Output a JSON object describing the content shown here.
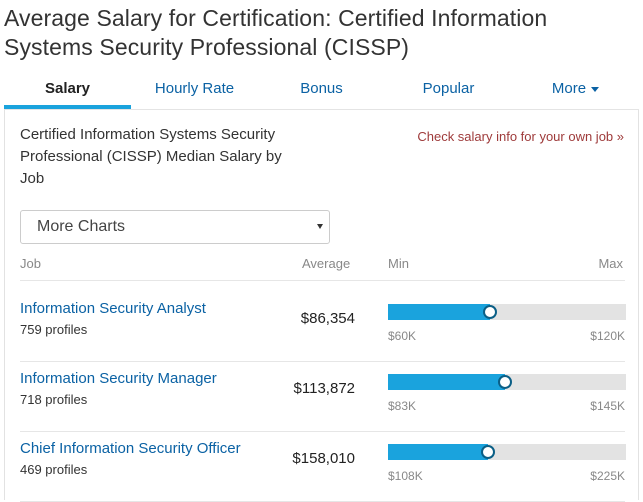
{
  "page": {
    "title": "Average Salary for Certification: Certified Information Systems Security Professional (CISSP)"
  },
  "tabs": [
    {
      "label": "Salary",
      "active": true
    },
    {
      "label": "Hourly Rate",
      "active": false
    },
    {
      "label": "Bonus",
      "active": false
    },
    {
      "label": "Popular",
      "active": false
    },
    {
      "label": "More",
      "active": false
    }
  ],
  "chart": {
    "title": "Certified Information Systems Security Professional (CISSP) Median Salary by Job",
    "own_job_link": "Check salary info for your own job »",
    "select_value": "More Charts"
  },
  "table": {
    "headers": {
      "job": "Job",
      "average": "Average",
      "min": "Min",
      "max": "Max"
    },
    "rows": [
      {
        "job": "Information Security Analyst",
        "profiles": "759 profiles",
        "average": "$86,354",
        "min": "$60K",
        "max": "$120K",
        "fill_percent": 43,
        "marker_percent": 43
      },
      {
        "job": "Information Security Manager",
        "profiles": "718 profiles",
        "average": "$113,872",
        "min": "$83K",
        "max": "$145K",
        "fill_percent": 49,
        "marker_percent": 49
      },
      {
        "job": "Chief Information Security Officer",
        "profiles": "469 profiles",
        "average": "$158,010",
        "min": "$108K",
        "max": "$225K",
        "fill_percent": 42,
        "marker_percent": 42
      }
    ]
  },
  "colors": {
    "accent": "#1aa3dd",
    "link": "#0b62a4",
    "own_job_link": "#9e3a3a",
    "bar_track": "#e3e3e3"
  }
}
